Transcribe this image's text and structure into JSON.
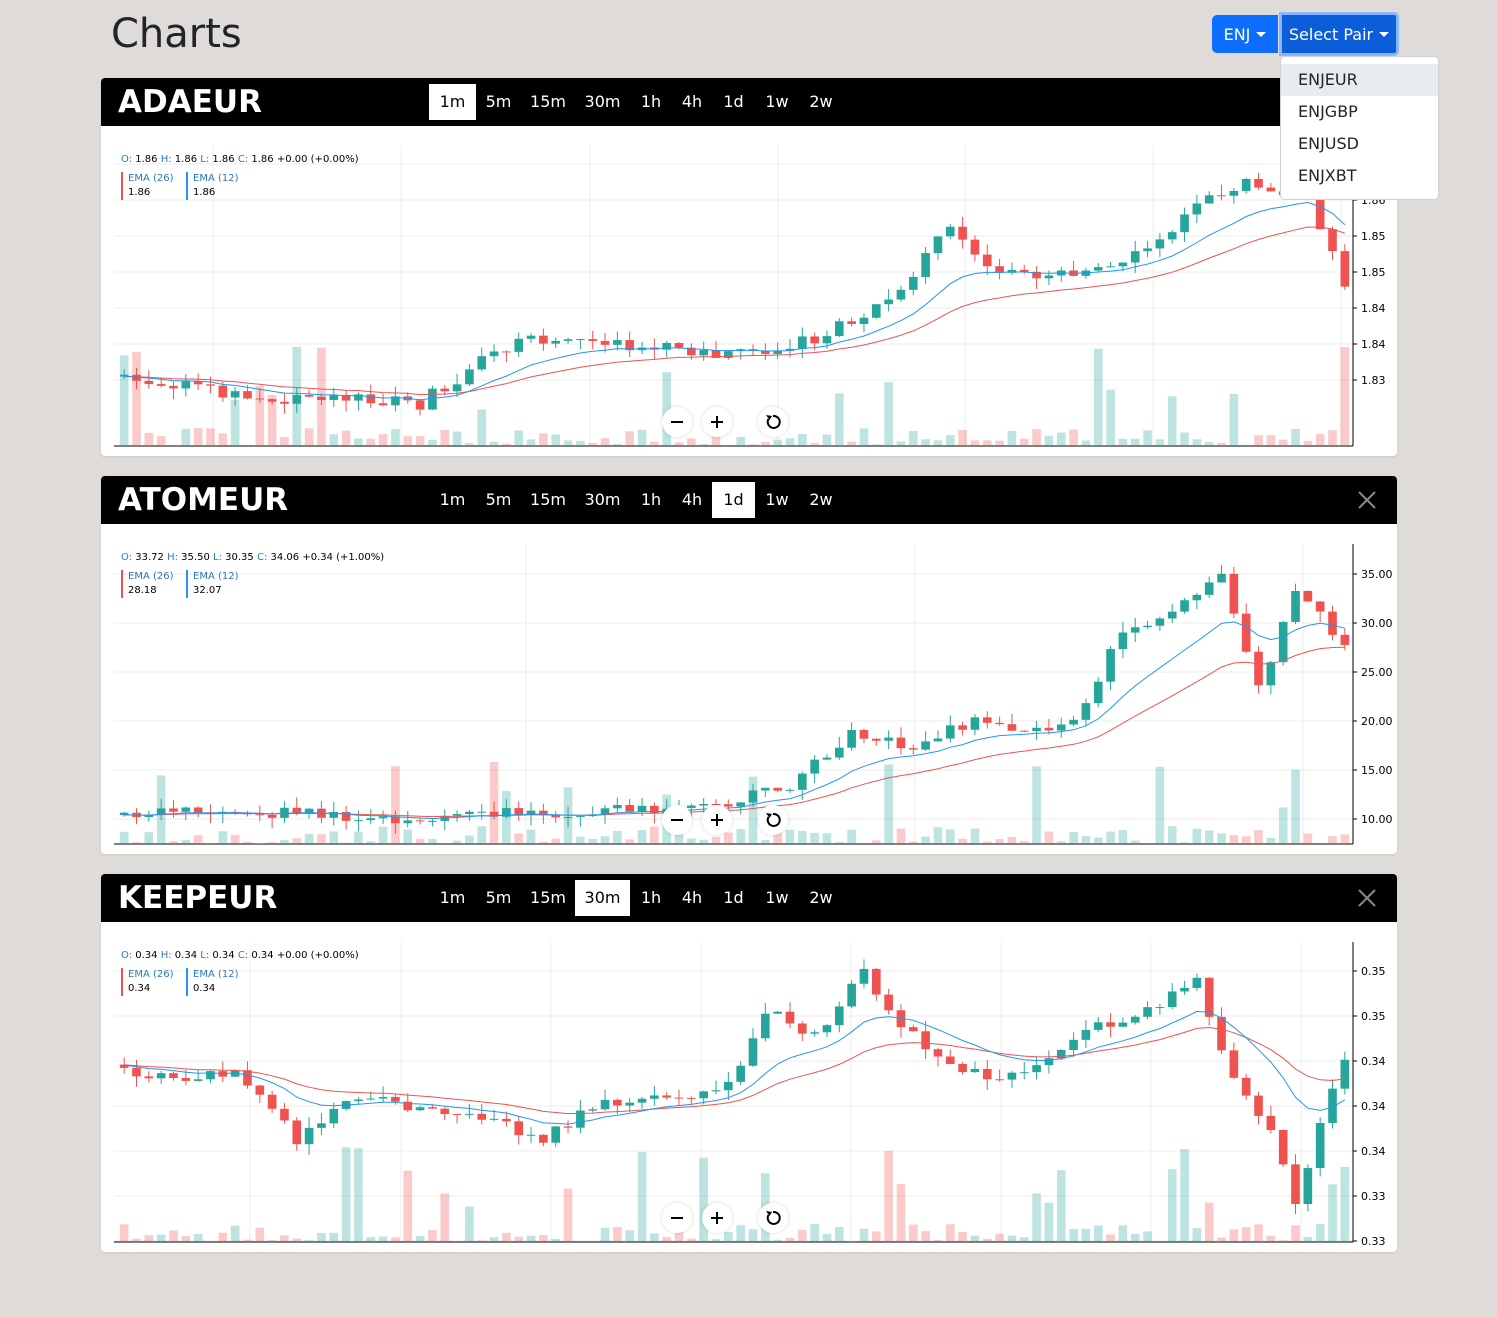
{
  "page": {
    "title": "Charts"
  },
  "header": {
    "coin_button": "ENJ",
    "pair_button": "Select Pair",
    "dropdown_items": [
      "ENJEUR",
      "ENJGBP",
      "ENJUSD",
      "ENJXBT"
    ]
  },
  "icons": {
    "zoom_out": "minus-icon",
    "zoom_in": "plus-icon",
    "reset": "reset-icon",
    "close": "close-icon"
  },
  "colors": {
    "up": "#26a69a",
    "down": "#ef5350",
    "ema26": "#ef5350",
    "ema12": "#2196f3",
    "accent": "#0d6efd"
  },
  "charts": [
    {
      "pair": "ADAEUR",
      "timeframes": [
        "1m",
        "5m",
        "15m",
        "30m",
        "1h",
        "4h",
        "1d",
        "1w",
        "2w"
      ],
      "active_timeframe": "1m",
      "ohlc": {
        "o_label": "O:",
        "o": "1.86",
        "h_label": "H:",
        "h": "1.86",
        "l_label": "L:",
        "l": "1.86",
        "c_label": "C:",
        "c": "1.86 +0.00 (+0.00%)"
      },
      "ema26": {
        "label": "EMA (26)",
        "value": "1.86"
      },
      "ema12": {
        "label": "EMA (12)",
        "value": "1.86"
      },
      "y_ticks": [
        "1.86",
        "1.86",
        "1.85",
        "1.85",
        "1.84",
        "1.84",
        "1.83"
      ],
      "closable": false
    },
    {
      "pair": "ATOMEUR",
      "timeframes": [
        "1m",
        "5m",
        "15m",
        "30m",
        "1h",
        "4h",
        "1d",
        "1w",
        "2w"
      ],
      "active_timeframe": "1d",
      "ohlc": {
        "o_label": "O:",
        "o": "33.72",
        "h_label": "H:",
        "h": "35.50",
        "l_label": "L:",
        "l": "30.35",
        "c_label": "C:",
        "c": "34.06 +0.34 (+1.00%)"
      },
      "ema26": {
        "label": "EMA (26)",
        "value": "28.18"
      },
      "ema12": {
        "label": "EMA (12)",
        "value": "32.07"
      },
      "y_ticks": [
        "35.00",
        "30.00",
        "25.00",
        "20.00",
        "15.00",
        "10.00"
      ],
      "closable": true
    },
    {
      "pair": "KEEPEUR",
      "timeframes": [
        "1m",
        "5m",
        "15m",
        "30m",
        "1h",
        "4h",
        "1d",
        "1w",
        "2w"
      ],
      "active_timeframe": "30m",
      "ohlc": {
        "o_label": "O:",
        "o": "0.34",
        "h_label": "H:",
        "h": "0.34",
        "l_label": "L:",
        "l": "0.34",
        "c_label": "C:",
        "c": "0.34 +0.00 (+0.00%)"
      },
      "ema26": {
        "label": "EMA (26)",
        "value": "0.34"
      },
      "ema12": {
        "label": "EMA (12)",
        "value": "0.34"
      },
      "y_ticks": [
        "0.35",
        "0.35",
        "0.34",
        "0.34",
        "0.34",
        "0.33",
        "0.33"
      ],
      "closable": true
    }
  ]
}
